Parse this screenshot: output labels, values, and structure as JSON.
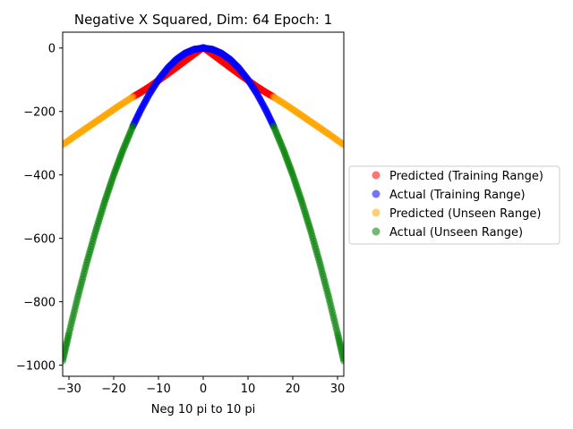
{
  "chart_data": {
    "type": "scatter",
    "title": "Negative X Squared, Dim: 64 Epoch: 1",
    "xlabel": "Neg 10 pi to 10 pi",
    "ylabel": "",
    "xlim": [
      -31.4,
      31.4
    ],
    "ylim": [
      -1035,
      50
    ],
    "xticks": [
      -30,
      -20,
      -10,
      0,
      10,
      20,
      30
    ],
    "xtick_labels": [
      "−30",
      "−20",
      "−10",
      "0",
      "10",
      "20",
      "30"
    ],
    "yticks": [
      0,
      -200,
      -400,
      -600,
      -800,
      -1000
    ],
    "ytick_labels": [
      "0",
      "−200",
      "−400",
      "−600",
      "−800",
      "−1000"
    ],
    "grid": false,
    "legend_position": "right",
    "series": [
      {
        "name": "Predicted (Training Range)",
        "color": "#ff0000",
        "x": [
          -15.7,
          -14,
          -12,
          -10,
          -8,
          -6,
          -4,
          -2,
          0,
          2,
          4,
          6,
          8,
          10,
          12,
          14,
          15.7
        ],
        "y": [
          -154,
          -140,
          -122,
          -102,
          -82,
          -61,
          -40,
          -19,
          2,
          -19,
          -40,
          -61,
          -82,
          -102,
          -122,
          -140,
          -154
        ]
      },
      {
        "name": "Actual (Training Range)",
        "color": "#0000ff",
        "x": [
          -15.7,
          -14,
          -12,
          -10,
          -8,
          -6,
          -4,
          -2,
          0,
          2,
          4,
          6,
          8,
          10,
          12,
          14,
          15.7
        ],
        "y": [
          -246,
          -196,
          -144,
          -100,
          -64,
          -36,
          -16,
          -4,
          0,
          -4,
          -16,
          -36,
          -64,
          -100,
          -144,
          -196,
          -246
        ]
      },
      {
        "name": "Predicted (Unseen Range)",
        "color": "#ffa500",
        "x": [
          -31.4,
          -28,
          -25,
          -22,
          -19,
          -15.7,
          15.7,
          19,
          22,
          25,
          28,
          31.4
        ],
        "y": [
          -305,
          -271,
          -242,
          -213,
          -184,
          -154,
          -154,
          -184,
          -213,
          -242,
          -271,
          -305
        ]
      },
      {
        "name": "Actual (Unseen Range)",
        "color": "#008000",
        "x": [
          -31.4,
          -30,
          -28,
          -26,
          -24,
          -22,
          -20,
          -18,
          -15.7,
          15.7,
          18,
          20,
          22,
          24,
          26,
          28,
          30,
          31.4
        ],
        "y": [
          -986,
          -900,
          -784,
          -676,
          -576,
          -484,
          -400,
          -324,
          -246,
          -246,
          -324,
          -400,
          -484,
          -576,
          -676,
          -784,
          -900,
          -986
        ]
      }
    ]
  }
}
